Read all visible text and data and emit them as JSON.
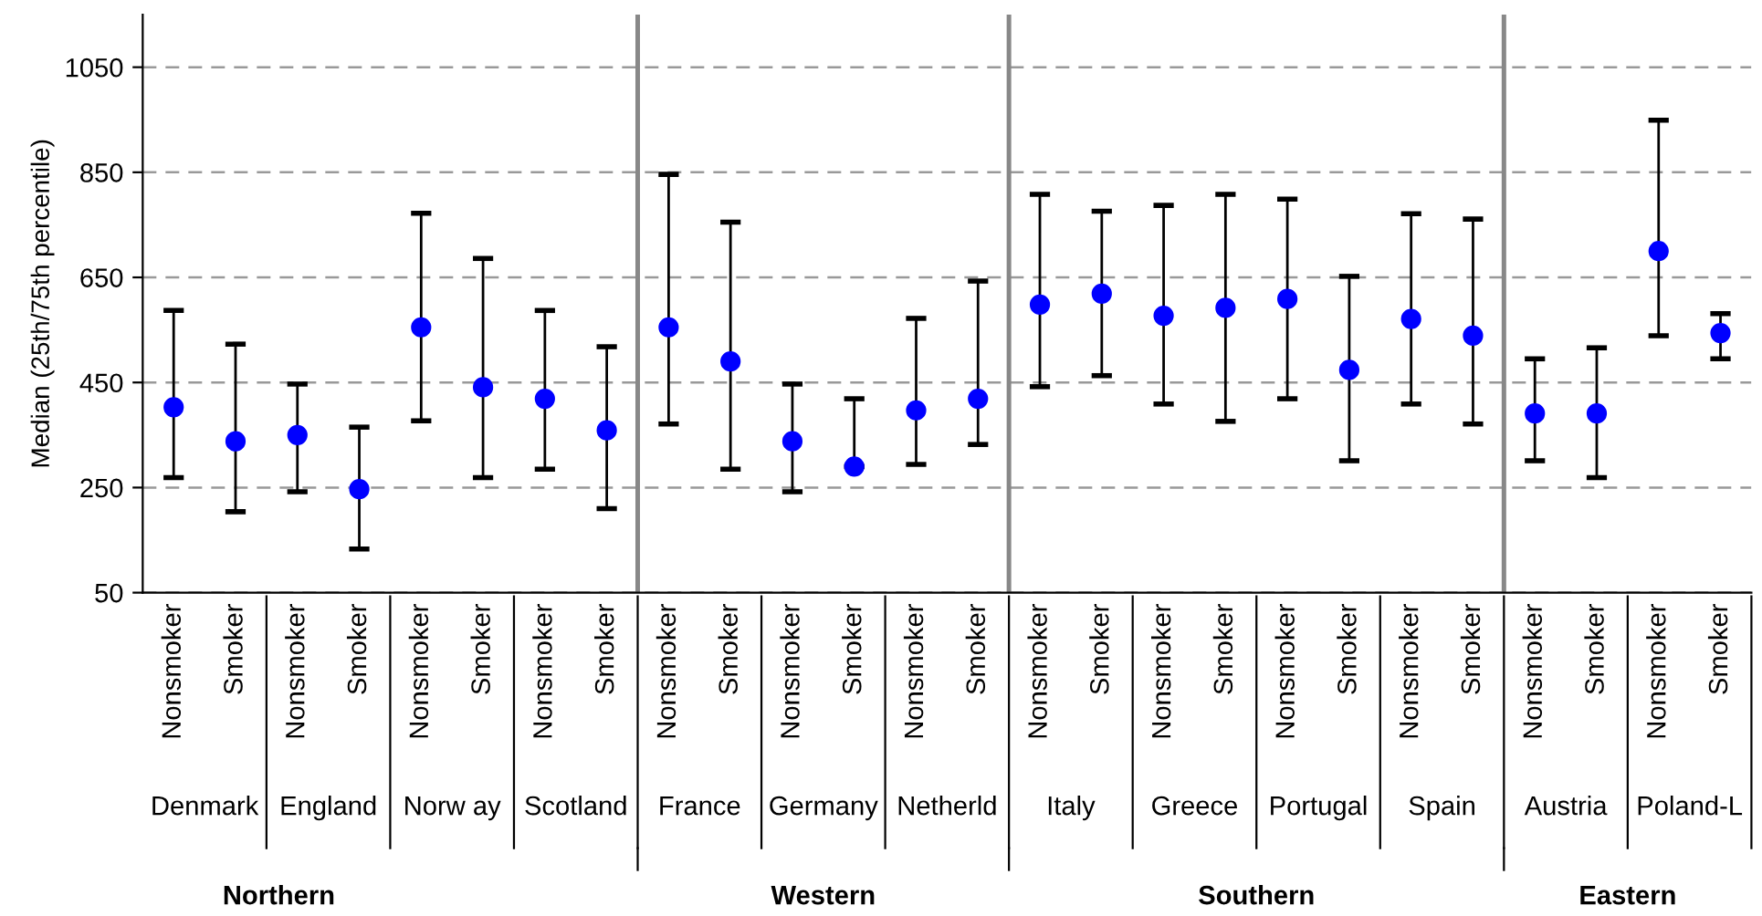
{
  "chart_data": {
    "type": "scatter",
    "ylabel": "Median (25th/75th percentile)",
    "categories": [
      "Nonsmoker",
      "Smoker",
      "Nonsmoker",
      "Smoker",
      "Nonsmoker",
      "Smoker",
      "Nonsmoker",
      "Smoker",
      "Nonsmoker",
      "Smoker",
      "Nonsmoker",
      "Smoker",
      "Nonsmoker",
      "Smoker",
      "Nonsmoker",
      "Smoker",
      "Nonsmoker",
      "Smoker",
      "Nonsmoker",
      "Smoker",
      "Nonsmoker",
      "Smoker",
      "Nonsmoker",
      "Smoker",
      "Nonsmoker",
      "Smoker"
    ],
    "series": [
      {
        "color": "#0000ff",
        "values": [
          403,
          338,
          350,
          247,
          555,
          441,
          419,
          359,
          555,
          490,
          338,
          290,
          397,
          419,
          598,
          619,
          577,
          592,
          609,
          474,
          571,
          539,
          391,
          391,
          700,
          544
        ],
        "errors": [
          [
            269,
            587
          ],
          [
            204,
            523
          ],
          [
            242,
            447
          ],
          [
            133,
            365
          ],
          [
            377,
            772
          ],
          [
            269,
            686
          ],
          [
            285,
            587
          ],
          [
            210,
            518
          ],
          [
            371,
            846
          ],
          [
            285,
            755
          ],
          [
            242,
            447
          ],
          [
            290,
            419
          ],
          [
            294,
            572
          ],
          [
            332,
            643
          ],
          [
            442,
            808
          ],
          [
            463,
            776
          ],
          [
            409,
            787
          ],
          [
            376,
            808
          ],
          [
            419,
            799
          ],
          [
            301,
            652
          ],
          [
            409,
            771
          ],
          [
            371,
            761
          ],
          [
            301,
            495
          ],
          [
            269,
            516
          ],
          [
            539,
            949
          ],
          [
            495,
            581
          ]
        ]
      }
    ],
    "annotations": [
      "Denmark",
      "England",
      "Norw ay",
      "Scotland",
      "France",
      "Germany",
      "Netherld",
      "Italy",
      "Greece",
      "Portugal",
      "Spain",
      "Austria",
      "Poland-L",
      "Northern",
      "Western",
      "Southern",
      "Eastern"
    ],
    "ylim": [
      50,
      1150
    ],
    "yticks": [
      50,
      250,
      450,
      650,
      850,
      1050
    ],
    "grid": "y",
    "marker": "circle"
  }
}
